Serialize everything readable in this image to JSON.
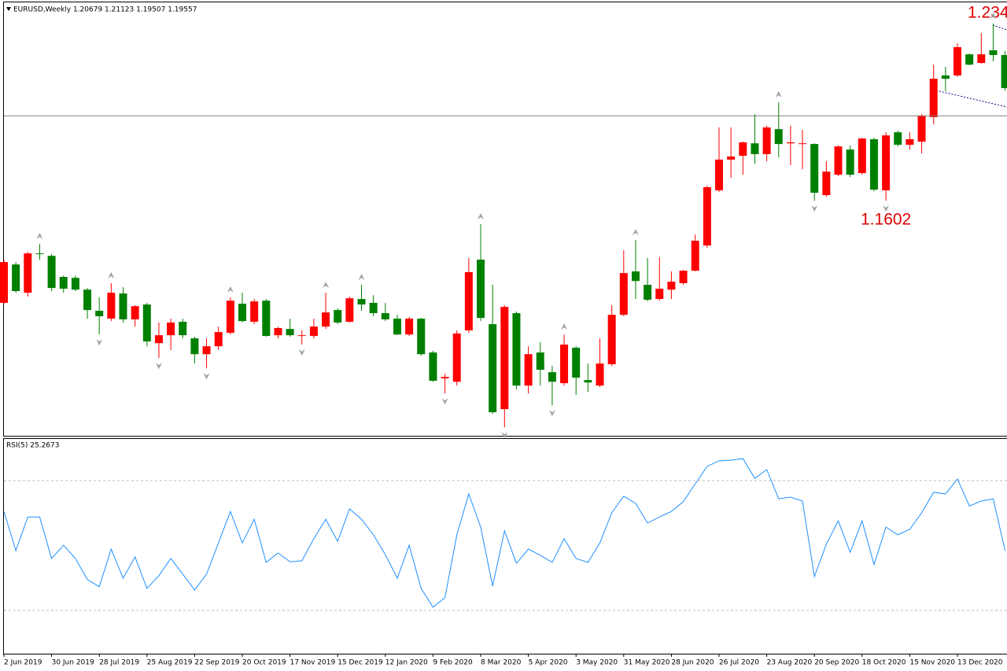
{
  "chart_data": {
    "type": "candlestick",
    "title": "EURUSD,Weekly  1.20679 1.21123 1.19507 1.19557",
    "categories": [
      "2 Jun 2019",
      null,
      null,
      null,
      "30 Jun 2019",
      null,
      null,
      null,
      "28 Jul 2019",
      null,
      null,
      null,
      "25 Aug 2019",
      null,
      null,
      null,
      "22 Sep 2019",
      null,
      null,
      null,
      "20 Oct 2019",
      null,
      null,
      null,
      "17 Nov 2019",
      null,
      null,
      null,
      "15 Dec 2019",
      null,
      null,
      null,
      "12 Jan 2020",
      null,
      null,
      null,
      "9 Feb 2020",
      null,
      null,
      null,
      "8 Mar 2020",
      null,
      null,
      null,
      "5 Apr 2020",
      null,
      null,
      null,
      "3 May 2020",
      null,
      null,
      null,
      "31 May 2020",
      null,
      null,
      null,
      "28 Jun 2020",
      null,
      null,
      null,
      "26 Jul 2020",
      null,
      null,
      null,
      "23 Aug 2020",
      null,
      null,
      null,
      "20 Sep 2020",
      null,
      null,
      null,
      "18 Oct 2020",
      null,
      null,
      null,
      "15 Nov 2020",
      null,
      null,
      null,
      "13 Dec 2020",
      null,
      null,
      null,
      null
    ],
    "open": [
      1.1176,
      1.1336,
      1.1218,
      1.1382,
      1.1372,
      1.1284,
      1.128,
      1.1231,
      1.1143,
      1.111,
      1.1215,
      1.1107,
      1.1169,
      1.1008,
      1.1041,
      1.1097,
      1.1028,
      1.0962,
      1.0995,
      1.1051,
      1.1172,
      1.1097,
      1.1185,
      1.1041,
      1.1067,
      1.1038,
      1.1038,
      1.1077,
      1.1146,
      1.1097,
      1.1192,
      1.1176,
      1.1133,
      1.111,
      1.1044,
      1.111,
      1.0969,
      1.0861,
      1.0847,
      1.1061,
      1.1356,
      1.1087,
      1.0733,
      1.1133,
      1.0831,
      1.0969,
      1.0887,
      1.0841,
      1.0989,
      1.0854,
      1.0831,
      1.092,
      1.1126,
      1.1307,
      1.1251,
      1.1192,
      1.1231,
      1.1258,
      1.131,
      1.1415,
      1.1645,
      1.1773,
      1.1789,
      1.1841,
      1.1796,
      1.19,
      1.1841,
      1.1838,
      1.1838,
      1.1625,
      1.171,
      1.1815,
      1.1717,
      1.1858,
      1.1645,
      1.1887,
      1.1835,
      1.1848,
      1.195,
      1.2124,
      1.2124,
      1.2212,
      1.2176,
      1.2229,
      1.2209
    ],
    "high": [
      1.1356,
      1.1346,
      1.1389,
      1.1422,
      1.1379,
      1.129,
      1.129,
      1.1238,
      1.1199,
      1.1258,
      1.1241,
      1.1166,
      1.1176,
      1.1094,
      1.111,
      1.111,
      1.1035,
      1.1028,
      1.1077,
      1.1199,
      1.1218,
      1.1192,
      1.1192,
      1.1077,
      1.111,
      1.1061,
      1.111,
      1.1218,
      1.1153,
      1.1202,
      1.1251,
      1.1208,
      1.1176,
      1.1126,
      1.1117,
      1.1113,
      1.0976,
      1.088,
      1.1061,
      1.1363,
      1.1504,
      1.1251,
      1.1166,
      1.114,
      1.0995,
      1.1012,
      1.0913,
      1.1044,
      1.0995,
      1.0923,
      1.1028,
      1.1166,
      1.1395,
      1.1438,
      1.1363,
      1.1366,
      1.1307,
      1.1313,
      1.1461,
      1.1664,
      1.1907,
      1.1907,
      1.1848,
      1.1963,
      1.1914,
      1.2012,
      1.1914,
      1.1897,
      1.1841,
      1.1766,
      1.1832,
      1.1832,
      1.1864,
      1.1864,
      1.1887,
      1.1894,
      1.1887,
      1.1963,
      1.2169,
      1.216,
      1.2258,
      1.2215,
      1.2301,
      1.234,
      1.2225
    ],
    "low": [
      1.1172,
      1.1218,
      1.1202,
      1.1356,
      1.1225,
      1.1218,
      1.1225,
      1.111,
      1.1044,
      1.11,
      1.1094,
      1.1077,
      1.0995,
      1.0946,
      1.0979,
      1.1028,
      1.0923,
      1.0903,
      1.0979,
      1.1044,
      1.1094,
      1.1087,
      1.1035,
      1.1028,
      1.1035,
      1.1002,
      1.1028,
      1.1067,
      1.1087,
      1.1094,
      1.1143,
      1.112,
      1.11,
      1.1041,
      1.1038,
      1.0956,
      1.0847,
      1.0798,
      1.0831,
      1.1051,
      1.11,
      1.0713,
      1.0657,
      1.0815,
      1.0798,
      1.0831,
      1.0749,
      1.0831,
      1.0792,
      1.0805,
      1.0825,
      1.0913,
      1.112,
      1.1192,
      1.1182,
      1.1185,
      1.1192,
      1.1251,
      1.1307,
      1.1405,
      1.1638,
      1.1697,
      1.171,
      1.1756,
      1.1766,
      1.1782,
      1.175,
      1.1733,
      1.1602,
      1.1618,
      1.1704,
      1.17,
      1.171,
      1.1641,
      1.1602,
      1.1828,
      1.1815,
      1.1799,
      1.192,
      1.2058,
      1.2117,
      1.2166,
      1.2173,
      1.2183,
      1.2061
    ],
    "close": [
      1.1346,
      1.1225,
      1.1382,
      1.1379,
      1.1238,
      1.1235,
      1.1231,
      1.1146,
      1.112,
      1.1218,
      1.1107,
      1.1162,
      1.1015,
      1.1041,
      1.1094,
      1.1041,
      1.0962,
      1.0995,
      1.1054,
      1.1185,
      1.11,
      1.1182,
      1.1038,
      1.1071,
      1.1041,
      1.1041,
      1.1077,
      1.1136,
      1.1094,
      1.1195,
      1.1169,
      1.1133,
      1.1107,
      1.1044,
      1.111,
      1.0962,
      1.0851,
      1.0867,
      1.1048,
      1.1304,
      1.1113,
      1.072,
      1.1159,
      1.0831,
      1.0962,
      1.0897,
      1.0847,
      1.1002,
      1.0864,
      1.0844,
      1.0923,
      1.1126,
      1.13,
      1.1267,
      1.1189,
      1.1235,
      1.1264,
      1.131,
      1.1435,
      1.1658,
      1.1773,
      1.1786,
      1.1845,
      1.1796,
      1.1907,
      1.1838,
      1.1845,
      1.1841,
      1.1635,
      1.1723,
      1.1828,
      1.171,
      1.1861,
      1.1648,
      1.1874,
      1.1835,
      1.1858,
      1.1956,
      1.211,
      1.211,
      1.2242,
      1.2169,
      1.2212,
      1.2209,
      1.2071
    ],
    "up_color": "#ff0000",
    "down_color": "#008000",
    "ylim": [
      1.0625,
      1.2422
    ],
    "close_line": 1.19557,
    "fractals_up": [
      3,
      9,
      19,
      27,
      30,
      40,
      47,
      53,
      65,
      83
    ],
    "fractals_down": [
      8,
      13,
      17,
      25,
      37,
      42,
      46,
      68,
      74
    ],
    "annotations": [
      "1.1602",
      "1.234"
    ],
    "indicator": {
      "type": "line",
      "title": "RSI(5) 25.2673",
      "color": "#1e90ff",
      "ylim": [
        16.9,
        82.85
      ],
      "levels": [
        30,
        70
      ],
      "values": [
        60.5,
        48.4,
        58.8,
        58.8,
        46.0,
        50.1,
        46.0,
        39.5,
        37.3,
        48.9,
        39.9,
        46.5,
        36.8,
        40.7,
        46.0,
        41.2,
        36.3,
        41.2,
        50.8,
        60.5,
        50.8,
        58.1,
        44.8,
        47.7,
        45.0,
        45.3,
        52.1,
        58.1,
        51.3,
        61.3,
        58.1,
        53.3,
        47.2,
        39.9,
        50.1,
        36.8,
        31.0,
        33.9,
        53.3,
        65.9,
        55.7,
        37.5,
        54.5,
        44.5,
        48.9,
        47.0,
        44.8,
        52.1,
        46.0,
        44.8,
        50.8,
        60.1,
        65.2,
        63.0,
        56.9,
        58.8,
        60.5,
        63.5,
        69.0,
        74.4,
        76.1,
        76.3,
        76.8,
        70.7,
        73.4,
        64.4,
        64.9,
        63.7,
        40.4,
        50.4,
        57.6,
        47.9,
        57.6,
        44.1,
        55.7,
        53.3,
        55.0,
        60.1,
        66.4,
        65.9,
        70.5,
        62.2,
        63.7,
        64.4,
        48.4
      ]
    }
  }
}
